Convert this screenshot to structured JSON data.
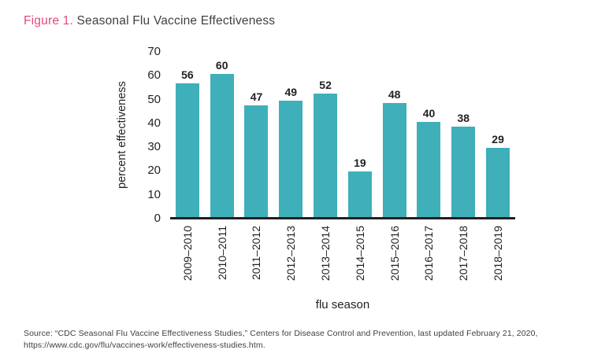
{
  "figure": {
    "label": "Figure 1.",
    "title": " Seasonal Flu Vaccine Effectiveness"
  },
  "chart_data": {
    "type": "bar",
    "title": "Figure 1. Seasonal Flu Vaccine Effectiveness",
    "categories": [
      "2009–2010",
      "2010–2011",
      "2011–2012",
      "2012–2013",
      "2013–2014",
      "2014–2015",
      "2015–2016",
      "2016–2017",
      "2017–2018",
      "2018–2019"
    ],
    "values": [
      56,
      60,
      47,
      49,
      52,
      19,
      48,
      40,
      38,
      29
    ],
    "xlabel": "flu season",
    "ylabel": "percent effectiveness",
    "ylim": [
      0,
      70
    ],
    "yticks": [
      0,
      10,
      20,
      30,
      40,
      50,
      60,
      70
    ],
    "grid": false,
    "legend": null,
    "bar_labels_shown": true
  },
  "colors": {
    "bar": "#3fafba",
    "figure_label": "#e24a7f",
    "title_text": "#414042",
    "axis": "#231f20"
  },
  "source": {
    "text": "Source: “CDC Seasonal Flu Vaccine Effectiveness Studies,” Centers for Disease Control and Prevention, last updated February 21, 2020, https://www.cdc.gov/flu/vaccines-work/effectiveness-studies.htm."
  }
}
